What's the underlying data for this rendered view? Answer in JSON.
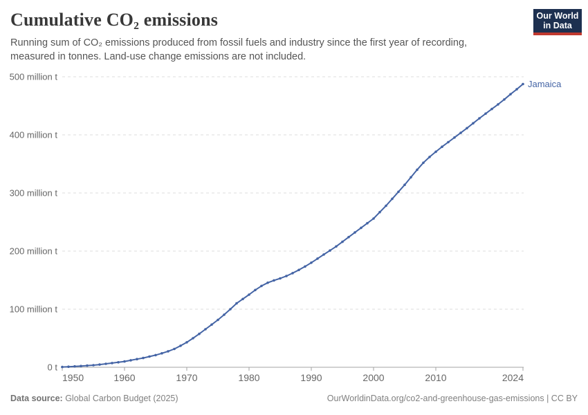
{
  "header": {
    "title": "Cumulative CO₂ emissions",
    "subtitle_lines": [
      "Running sum of CO₂ emissions produced from fossil fuels and industry since the first year of recording,",
      "measured in tonnes. Land-use change emissions are not included."
    ]
  },
  "logo": {
    "line1": "Our World",
    "line2": "in Data",
    "bg_color": "#1d3050",
    "bar_color": "#c0392f"
  },
  "chart_data": {
    "type": "line",
    "title": "Cumulative CO₂ emissions",
    "entity": "Jamaica",
    "unit": "million tonnes",
    "line_color": "#4464a5",
    "grid_color": "#dcdcdc",
    "axis_color": "#a3a3a3",
    "tick_text_color": "#666666",
    "grid": true,
    "legend_position": "end-of-line",
    "xlim": [
      1950,
      2024
    ],
    "ylim": [
      0,
      500
    ],
    "xticks": [
      "1950",
      "1960",
      "1970",
      "1980",
      "1990",
      "2000",
      "2010",
      "2024"
    ],
    "xtick_values": [
      1950,
      1960,
      1970,
      1980,
      1990,
      2000,
      2010,
      2024
    ],
    "ytick_labels": [
      "0 t",
      "100 million t",
      "200 million t",
      "300 million t",
      "400 million t",
      "500 million t"
    ],
    "ytick_values": [
      0,
      100,
      200,
      300,
      400,
      500
    ],
    "x": [
      1950,
      1951,
      1952,
      1953,
      1954,
      1955,
      1956,
      1957,
      1958,
      1959,
      1960,
      1961,
      1962,
      1963,
      1964,
      1965,
      1966,
      1967,
      1968,
      1969,
      1970,
      1971,
      1972,
      1973,
      1974,
      1975,
      1976,
      1977,
      1978,
      1979,
      1980,
      1981,
      1982,
      1983,
      1984,
      1985,
      1986,
      1987,
      1988,
      1989,
      1990,
      1991,
      1992,
      1993,
      1994,
      1995,
      1996,
      1997,
      1998,
      1999,
      2000,
      2001,
      2002,
      2003,
      2004,
      2005,
      2006,
      2007,
      2008,
      2009,
      2010,
      2011,
      2012,
      2013,
      2014,
      2015,
      2016,
      2017,
      2018,
      2019,
      2020,
      2021,
      2022,
      2023,
      2024
    ],
    "values": [
      0.5,
      1.0,
      1.5,
      2.1,
      2.8,
      3.6,
      4.7,
      6.0,
      7.3,
      8.6,
      10.0,
      12.0,
      14.0,
      16.0,
      18.5,
      21.0,
      24.0,
      27.5,
      31.5,
      37.0,
      43.0,
      50.0,
      57.5,
      65.5,
      73.5,
      81.5,
      90.5,
      100.0,
      110.0,
      117.5,
      125.0,
      133.0,
      140.0,
      145.5,
      149.5,
      153.0,
      157.0,
      162.0,
      167.5,
      173.5,
      180.0,
      187.0,
      194.0,
      201.0,
      208.0,
      216.0,
      224.0,
      232.0,
      240.0,
      248.0,
      256.0,
      267.0,
      278.0,
      290.0,
      302.0,
      314.0,
      327.0,
      340.0,
      352.0,
      362.0,
      371.0,
      379.5,
      387.5,
      395.5,
      403.5,
      411.5,
      420.0,
      428.5,
      436.5,
      444.5,
      452.5,
      461.0,
      470.0,
      478.5,
      487.5
    ]
  },
  "footer": {
    "source_label": "Data source:",
    "source_value": " Global Carbon Budget (2025)",
    "right_text": "OurWorldinData.org/co2-and-greenhouse-gas-emissions | CC BY"
  }
}
